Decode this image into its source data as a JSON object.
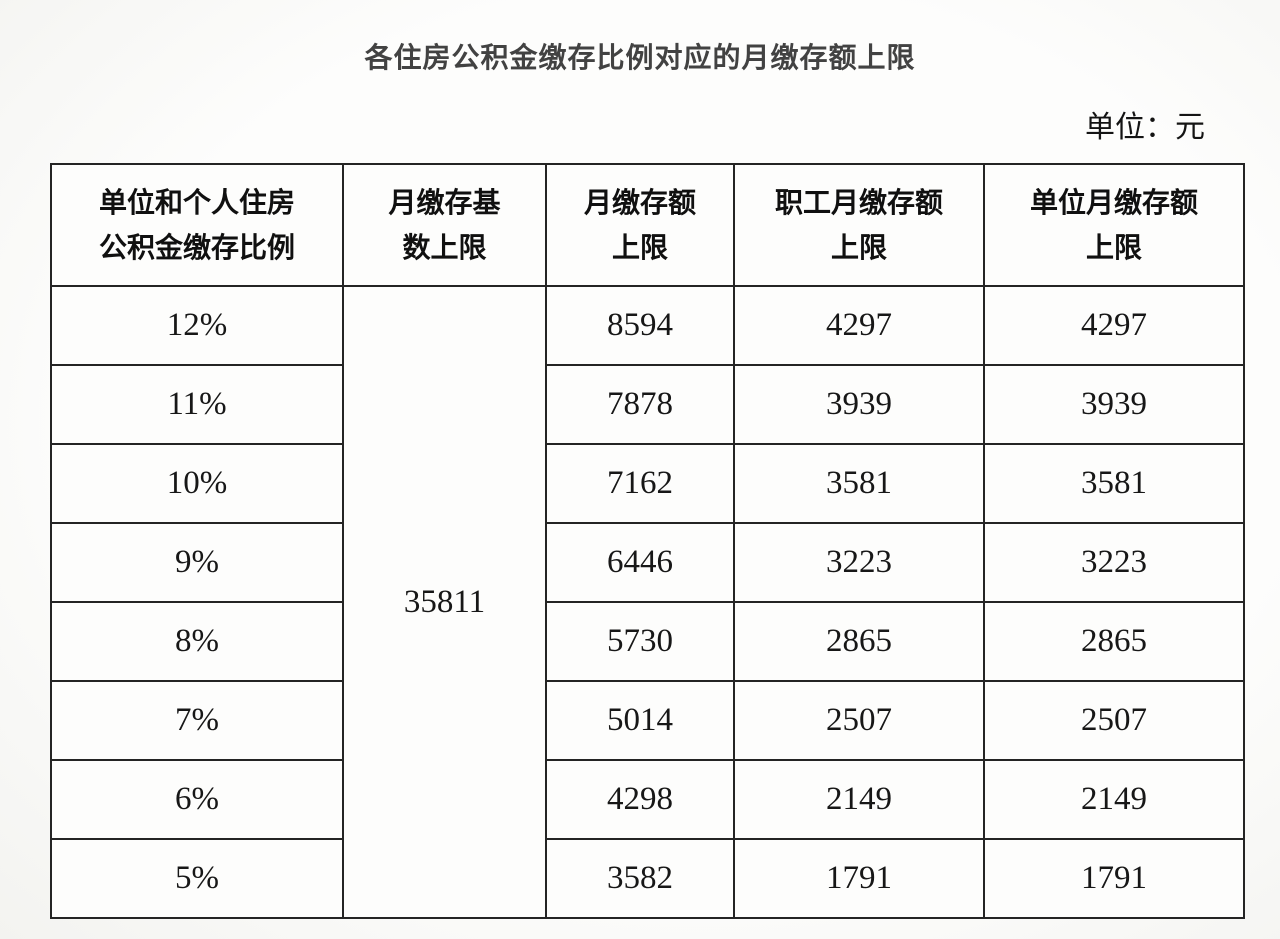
{
  "page": {
    "title": "各住房公积金缴存比例对应的月缴存额上限",
    "unit_label": "单位：元"
  },
  "table": {
    "headers": [
      {
        "line1": "单位和个人住房",
        "line2": "公积金缴存比例"
      },
      {
        "line1": "月缴存基",
        "line2": "数上限"
      },
      {
        "line1": "月缴存额",
        "line2": "上限"
      },
      {
        "line1": "职工月缴存额",
        "line2": "上限"
      },
      {
        "line1": "单位月缴存额",
        "line2": "上限"
      }
    ],
    "merged_base_limit": "35811",
    "rows": [
      {
        "ratio": "12%",
        "monthly_limit": "8594",
        "employee_limit": "4297",
        "employer_limit": "4297"
      },
      {
        "ratio": "11%",
        "monthly_limit": "7878",
        "employee_limit": "3939",
        "employer_limit": "3939"
      },
      {
        "ratio": "10%",
        "monthly_limit": "7162",
        "employee_limit": "3581",
        "employer_limit": "3581"
      },
      {
        "ratio": "9%",
        "monthly_limit": "6446",
        "employee_limit": "3223",
        "employer_limit": "3223"
      },
      {
        "ratio": "8%",
        "monthly_limit": "5730",
        "employee_limit": "2865",
        "employer_limit": "2865"
      },
      {
        "ratio": "7%",
        "monthly_limit": "5014",
        "employee_limit": "2507",
        "employer_limit": "2507"
      },
      {
        "ratio": "6%",
        "monthly_limit": "4298",
        "employee_limit": "2149",
        "employer_limit": "2149"
      },
      {
        "ratio": "5%",
        "monthly_limit": "3582",
        "employee_limit": "1791",
        "employer_limit": "1791"
      }
    ]
  },
  "colors": {
    "background": "#fafaf8",
    "title_text": "#424242",
    "table_text": "#171717",
    "border": "#242424"
  }
}
